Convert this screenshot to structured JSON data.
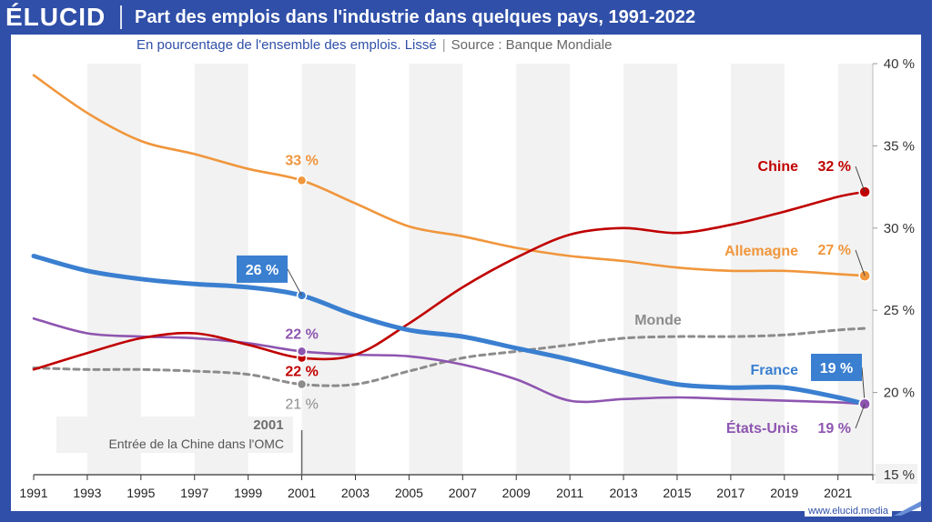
{
  "header": {
    "logo": "ÉLUCID",
    "title": "Part des emplois dans l'industrie dans quelques pays, 1991-2022",
    "subtitle": "En pourcentage de l'ensemble des emplois. Lissé",
    "source": "Source : Banque Mondiale"
  },
  "footer": {
    "site": "www.elucid.media"
  },
  "colors": {
    "brand": "#2f4fa8",
    "chine": "#c00000",
    "allemagne": "#f0963c",
    "france": "#3a7fd0",
    "etats_unis": "#8e55b0",
    "monde": "#8c8c8c",
    "band": "#f2f2f2"
  },
  "chart_data": {
    "type": "line",
    "title": "Part des emplois dans l'industrie dans quelques pays, 1991-2022",
    "ylabel": "En pourcentage de l'ensemble des emplois",
    "xlim": [
      1991,
      2022.3
    ],
    "ylim": [
      15,
      40
    ],
    "x_ticks": [
      "1991",
      "1993",
      "1995",
      "1997",
      "1999",
      "2001",
      "2003",
      "2005",
      "2007",
      "2009",
      "2011",
      "2013",
      "2015",
      "2017",
      "2019",
      "2021"
    ],
    "y_ticks": [
      "15 %",
      "20 %",
      "25 %",
      "30 %",
      "35 %",
      "40 %"
    ],
    "x": [
      1991,
      1993,
      1995,
      1997,
      1999,
      2001,
      2003,
      2005,
      2007,
      2009,
      2011,
      2013,
      2015,
      2017,
      2019,
      2021,
      2022
    ],
    "series": [
      {
        "name": "Allemagne",
        "key": "allemagne",
        "style": "solid",
        "values": [
          39.3,
          37.0,
          35.3,
          34.5,
          33.6,
          32.9,
          31.5,
          30.1,
          29.5,
          28.8,
          28.3,
          28.0,
          27.6,
          27.4,
          27.4,
          27.2,
          27.1
        ]
      },
      {
        "name": "Chine",
        "key": "chine",
        "style": "solid",
        "values": [
          21.4,
          22.4,
          23.3,
          23.6,
          22.9,
          22.1,
          22.3,
          24.2,
          26.4,
          28.2,
          29.6,
          30.0,
          29.7,
          30.2,
          31.0,
          31.9,
          32.2
        ]
      },
      {
        "name": "France",
        "key": "france",
        "style": "solid",
        "thick": true,
        "values": [
          28.3,
          27.4,
          26.9,
          26.6,
          26.4,
          25.9,
          24.7,
          23.8,
          23.4,
          22.7,
          22.0,
          21.2,
          20.5,
          20.3,
          20.3,
          19.7,
          19.3
        ]
      },
      {
        "name": "États-Unis",
        "key": "etats_unis",
        "style": "solid",
        "values": [
          24.5,
          23.6,
          23.4,
          23.3,
          23.0,
          22.5,
          22.3,
          22.2,
          21.7,
          20.8,
          19.5,
          19.6,
          19.7,
          19.6,
          19.5,
          19.4,
          19.3
        ]
      },
      {
        "name": "Monde",
        "key": "monde",
        "style": "dashed",
        "values": [
          21.5,
          21.4,
          21.4,
          21.3,
          21.1,
          20.5,
          20.5,
          21.3,
          22.1,
          22.5,
          22.9,
          23.3,
          23.4,
          23.4,
          23.5,
          23.8,
          23.9
        ]
      }
    ],
    "point_labels": [
      {
        "series": "allemagne",
        "x": 2001,
        "y": 32.9,
        "text": "33 %"
      },
      {
        "series": "chine",
        "x": 2001,
        "y": 22.1,
        "text": "22 %"
      },
      {
        "series": "france",
        "x": 2001,
        "y": 25.9,
        "text": "26 %",
        "boxed": true
      },
      {
        "series": "etats_unis",
        "x": 2001,
        "y": 22.5,
        "text": "22 %"
      },
      {
        "series": "monde",
        "x": 2001,
        "y": 20.5,
        "text": "21 %"
      }
    ],
    "end_labels": [
      {
        "series": "chine",
        "name": "Chine",
        "text": "32 %",
        "y": 32.2
      },
      {
        "series": "allemagne",
        "name": "Allemagne",
        "text": "27 %",
        "y": 27.1
      },
      {
        "series": "france",
        "name": "France",
        "text": "19 %",
        "y": 19.3,
        "boxed": true
      },
      {
        "series": "etats_unis",
        "name": "États-Unis",
        "text": "19 %",
        "y": 19.3
      }
    ],
    "series_label_monde": "Monde",
    "annotation": {
      "year": "2001",
      "text": "Entrée de la Chine dans l'OMC",
      "x": 2001
    },
    "grid": false,
    "shaded_bands": [
      [
        1993,
        1995
      ],
      [
        1997,
        1999
      ],
      [
        2001,
        2003
      ],
      [
        2005,
        2007
      ],
      [
        2009,
        2011
      ],
      [
        2013,
        2015
      ],
      [
        2017,
        2019
      ],
      [
        2021,
        2022.3
      ]
    ]
  }
}
